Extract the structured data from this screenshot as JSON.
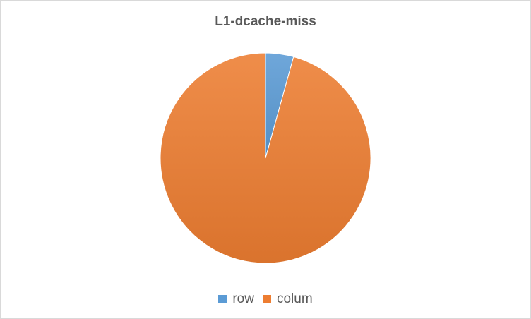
{
  "chart_data": {
    "type": "pie",
    "title": "L1-dcache-miss",
    "categories": [
      "row",
      "colum"
    ],
    "values": [
      4.3,
      95.7
    ],
    "colors": [
      "#5b9bd5",
      "#ed7d31"
    ],
    "legend_position": "bottom"
  }
}
